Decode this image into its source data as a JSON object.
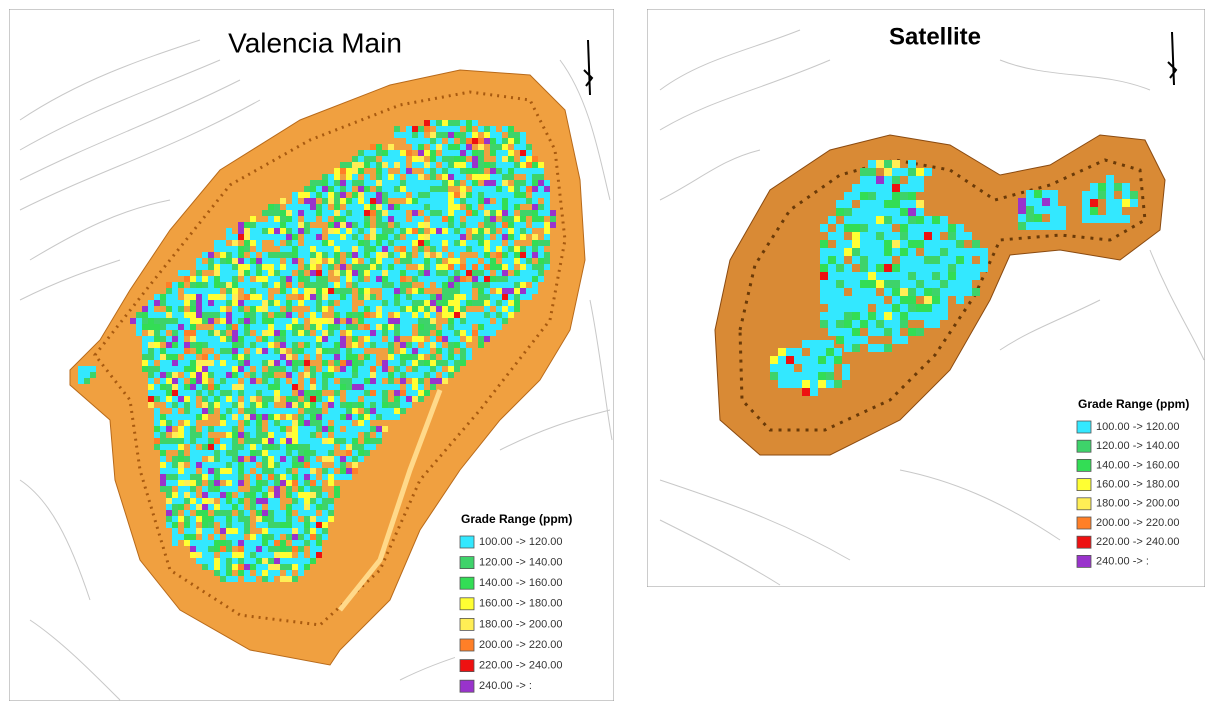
{
  "panels": [
    {
      "title": "Valencia Main",
      "legend": {
        "title": "Grade Range (ppm)",
        "items": [
          {
            "label": "100.00 -> 120.00",
            "color": "#33e8ff"
          },
          {
            "label": "120.00 -> 140.00",
            "color": "#3ed36a"
          },
          {
            "label": "140.00 -> 160.00",
            "color": "#33dd55"
          },
          {
            "label": "160.00 -> 180.00",
            "color": "#ffff33"
          },
          {
            "label": "180.00 -> 200.00",
            "color": "#ffee55"
          },
          {
            "label": "200.00 -> 220.00",
            "color": "#ff7f27"
          },
          {
            "label": "220.00 -> 240.00",
            "color": "#ee1111"
          },
          {
            "label": "240.00 -> :",
            "color": "#9933cc"
          }
        ]
      }
    },
    {
      "title": "Satellite",
      "legend": {
        "title": "Grade Range (ppm)",
        "items": [
          {
            "label": "100.00 -> 120.00",
            "color": "#33e8ff"
          },
          {
            "label": "120.00 -> 140.00",
            "color": "#3ed36a"
          },
          {
            "label": "140.00 -> 160.00",
            "color": "#33dd55"
          },
          {
            "label": "160.00 -> 180.00",
            "color": "#ffff33"
          },
          {
            "label": "180.00 -> 200.00",
            "color": "#ffee55"
          },
          {
            "label": "200.00 -> 220.00",
            "color": "#ff7f27"
          },
          {
            "label": "220.00 -> 240.00",
            "color": "#ee1111"
          },
          {
            "label": "240.00 -> :",
            "color": "#9933cc"
          }
        ]
      }
    }
  ]
}
